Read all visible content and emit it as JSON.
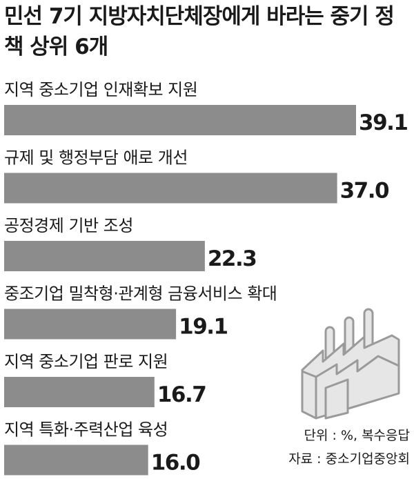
{
  "title": "민선 7기 지방자치단체장에게 바라는 중기 정책 상위 6개",
  "unit_note": "단위 : %, 복수응답",
  "source_note": "자료 : 중소기업중앙회",
  "colors": {
    "bar": "#8c8c8c",
    "text": "#1a1a1a",
    "icon_fill": "#e6e6e6",
    "icon_stroke": "#9a9a9a"
  },
  "icon": "factory-icon",
  "chart_data": {
    "type": "bar",
    "orientation": "horizontal",
    "title": "민선 7기 지방자치단체장에게 바라는 중기 정책 상위 6개",
    "categories": [
      "지역 중소기업 인재확보 지원",
      "규제 및 행정부담 애로 개선",
      "공정경제 기반 조성",
      "중조기업 밀착형·관계형  금융서비스 확대",
      "지역 중소기업 판로 지원",
      "지역 특화·주력산업 육성"
    ],
    "values": [
      39.1,
      37.0,
      22.3,
      19.1,
      16.7,
      16.0
    ],
    "value_labels": [
      "39.1",
      "37.0",
      "22.3",
      "19.1",
      "16.7",
      "16.0"
    ],
    "xlim": [
      0,
      39.1
    ],
    "grid": false,
    "legend": "none"
  }
}
